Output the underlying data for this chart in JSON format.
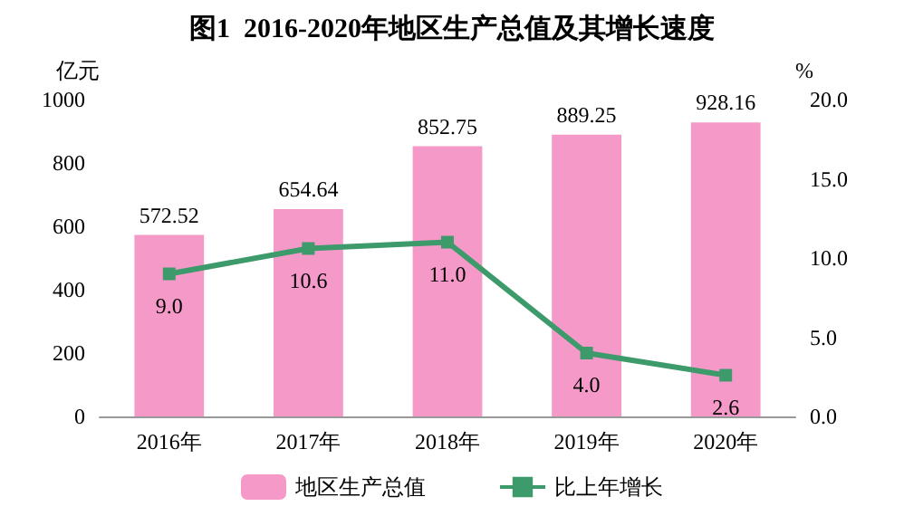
{
  "chart_data": {
    "type": "bar",
    "title": "图1  2016-2020年地区生产总值及其增长速度",
    "categories": [
      "2016年",
      "2017年",
      "2018年",
      "2019年",
      "2020年"
    ],
    "ylabel": "亿元",
    "y2label": "%",
    "ylim": [
      0,
      1000
    ],
    "yticks": [
      0,
      200,
      400,
      600,
      800,
      1000
    ],
    "y2lim": [
      0,
      20
    ],
    "y2ticks": [
      {
        "value": 0,
        "label": "0.0"
      },
      {
        "value": 5,
        "label": "5.0"
      },
      {
        "value": 10,
        "label": "10.0"
      },
      {
        "value": 15,
        "label": "15.0"
      },
      {
        "value": 20,
        "label": "20.0"
      }
    ],
    "series": [
      {
        "name": "地区生产总值",
        "color": "#f59ac8",
        "values": [
          572.52,
          654.64,
          852.75,
          889.25,
          928.16
        ]
      },
      {
        "name": "比上年增长",
        "type": "line",
        "axis": "y2",
        "color": "#3d9a6b",
        "marker": "square",
        "values": [
          9.0,
          10.6,
          11.0,
          4.0,
          2.6
        ],
        "value_labels": [
          "9.0",
          "10.6",
          "11.0",
          "4.0",
          "2.6"
        ]
      }
    ],
    "data_labels": true,
    "legend": "bottom",
    "grid": false
  }
}
